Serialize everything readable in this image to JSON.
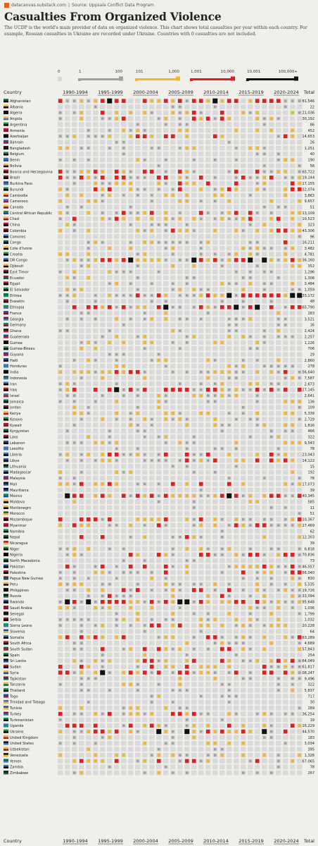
{
  "source": {
    "site": "datacanvas.substack.com",
    "separator": "|",
    "label": "Source: Uppsala Conflict Data Program"
  },
  "title": "Casualties From Organized Violence",
  "description": "The UCDP is the world's main provider of data on organized violence. This chart shows total casualties per year within each country. For example, Russian casualties in Ukraine are recorded under Ukraine. Countries with 0 casualties are not included.",
  "legend": [
    {
      "min": "0",
      "max": "",
      "color": "#d9d9d9"
    },
    {
      "min": "1",
      "max": "100",
      "color": "#a0a0a0"
    },
    {
      "min": "101",
      "max": "1,000",
      "color": "#f2b72a"
    },
    {
      "min": "1,001",
      "max": "10,000",
      "color": "#e81a1a"
    },
    {
      "min": "10,001",
      "max": "100,000+",
      "color": "#111111"
    }
  ],
  "columns": {
    "country": "Country",
    "total": "Total",
    "periods": [
      "1990-1994",
      "1995-1999",
      "2000-2004",
      "2005-2009",
      "2010-2014",
      "2015-2019",
      "2020-2024"
    ]
  },
  "chart_data": {
    "type": "heatmap",
    "years": [
      1990,
      2024
    ],
    "color_scale": [
      "#d9d9d9",
      "#a0a0a0",
      "#f2b72a",
      "#e81a1a",
      "#111111"
    ],
    "rows": [
      {
        "country": "Afghanistan",
        "total": "381,546"
      },
      {
        "country": "Albania",
        "total": "22"
      },
      {
        "country": "Algeria",
        "total": "21,036"
      },
      {
        "country": "Angola",
        "total": "30,192"
      },
      {
        "country": "Argentina",
        "total": "86"
      },
      {
        "country": "Armenia",
        "total": "452"
      },
      {
        "country": "Azerbaijan",
        "total": "14,653"
      },
      {
        "country": "Bahrain",
        "total": "26"
      },
      {
        "country": "Bangladesh",
        "total": "1,251"
      },
      {
        "country": "Belgium",
        "total": "40"
      },
      {
        "country": "Benin",
        "total": "190"
      },
      {
        "country": "Bolivia",
        "total": "58"
      },
      {
        "country": "Bosnia and Herzegovina",
        "total": "65,722"
      },
      {
        "country": "Brazil",
        "total": "19,144"
      },
      {
        "country": "Burkina Faso",
        "total": "17,155"
      },
      {
        "country": "Burundi",
        "total": "32,074"
      },
      {
        "country": "Cambodia",
        "total": "3,863"
      },
      {
        "country": "Cameroon",
        "total": "9,657"
      },
      {
        "country": "Canada",
        "total": "51"
      },
      {
        "country": "Central African Republic",
        "total": "13,109"
      },
      {
        "country": "Chad",
        "total": "10,523"
      },
      {
        "country": "China",
        "total": "323"
      },
      {
        "country": "Colombia",
        "total": "43,306"
      },
      {
        "country": "Comoros",
        "total": "96"
      },
      {
        "country": "Congo",
        "total": "16,211"
      },
      {
        "country": "Cote d'Ivoire",
        "total": "3,482"
      },
      {
        "country": "Croatia",
        "total": "4,781"
      },
      {
        "country": "DR Congo",
        "total": "136,160"
      },
      {
        "country": "Djibouti",
        "total": "352"
      },
      {
        "country": "East Timor",
        "total": "1,296"
      },
      {
        "country": "Ecuador",
        "total": "1,308"
      },
      {
        "country": "Egypt",
        "total": "3,484"
      },
      {
        "country": "El Salvador",
        "total": "1,059"
      },
      {
        "country": "Eritrea",
        "total": "133,172"
      },
      {
        "country": "Eswatini",
        "total": "48"
      },
      {
        "country": "Ethiopia",
        "total": "365,790"
      },
      {
        "country": "France",
        "total": "283"
      },
      {
        "country": "Georgia",
        "total": "3,521"
      },
      {
        "country": "Germany",
        "total": "16"
      },
      {
        "country": "Ghana",
        "total": "2,424"
      },
      {
        "country": "Guatemala",
        "total": "2,257"
      },
      {
        "country": "Guinea",
        "total": "1,226"
      },
      {
        "country": "Guinea-Bissau",
        "total": "706"
      },
      {
        "country": "Guyana",
        "total": "29"
      },
      {
        "country": "Haiti",
        "total": "2,860"
      },
      {
        "country": "Honduras",
        "total": "278"
      },
      {
        "country": "India",
        "total": "56,640"
      },
      {
        "country": "Indonesia",
        "total": "7,587"
      },
      {
        "country": "Iran",
        "total": "2,673"
      },
      {
        "country": "Iraq",
        "total": "127,145"
      },
      {
        "country": "Israel",
        "total": "2,641"
      },
      {
        "country": "Jamaica",
        "total": "136"
      },
      {
        "country": "Jordan",
        "total": "109"
      },
      {
        "country": "Kenya",
        "total": "5,339"
      },
      {
        "country": "Kosovo",
        "total": "2,729"
      },
      {
        "country": "Kuwait",
        "total": "1,816"
      },
      {
        "country": "Kyrgyzstan",
        "total": "466"
      },
      {
        "country": "Laos",
        "total": "322"
      },
      {
        "country": "Lebanon",
        "total": "9,543"
      },
      {
        "country": "Lesotho",
        "total": "78"
      },
      {
        "country": "Liberia",
        "total": "23,043"
      },
      {
        "country": "Libya",
        "total": "14,122"
      },
      {
        "country": "Lithuania",
        "total": "15"
      },
      {
        "country": "Madagascar",
        "total": "192"
      },
      {
        "country": "Malaysia",
        "total": "78"
      },
      {
        "country": "Mali",
        "total": "17,073"
      },
      {
        "country": "Mauritania",
        "total": "39"
      },
      {
        "country": "Mexico",
        "total": "140,345"
      },
      {
        "country": "Moldova",
        "total": "585"
      },
      {
        "country": "Montenegro",
        "total": "11"
      },
      {
        "country": "Morocco",
        "total": "51"
      },
      {
        "country": "Mozambique",
        "total": "10,367"
      },
      {
        "country": "Myanmar",
        "total": "27,469"
      },
      {
        "country": "Namibia",
        "total": "62"
      },
      {
        "country": "Nepal",
        "total": "12,303"
      },
      {
        "country": "Nicaragua",
        "total": "39"
      },
      {
        "country": "Niger",
        "total": "6,818"
      },
      {
        "country": "Nigeria",
        "total": "70,836"
      },
      {
        "country": "North Macedonia",
        "total": "73"
      },
      {
        "country": "Pakistan",
        "total": "46,557"
      },
      {
        "country": "Palestine",
        "total": "56,040"
      },
      {
        "country": "Papua New Guinea",
        "total": "830"
      },
      {
        "country": "Peru",
        "total": "5,535"
      },
      {
        "country": "Philippines",
        "total": "19,726"
      },
      {
        "country": "Russia",
        "total": "33,094"
      },
      {
        "country": "Rwanda",
        "total": "795,648"
      },
      {
        "country": "Saudi Arabia",
        "total": "1,036"
      },
      {
        "country": "Senegal",
        "total": "1,799"
      },
      {
        "country": "Serbia",
        "total": "1,032"
      },
      {
        "country": "Sierra Leone",
        "total": "20,228"
      },
      {
        "country": "Slovenia",
        "total": "64"
      },
      {
        "country": "Somalia",
        "total": "63,289"
      },
      {
        "country": "South Africa",
        "total": "4,689"
      },
      {
        "country": "South Sudan",
        "total": "57,843"
      },
      {
        "country": "Spain",
        "total": "254"
      },
      {
        "country": "Sri Lanka",
        "total": "64,049"
      },
      {
        "country": "Sudan",
        "total": "61,817"
      },
      {
        "country": "Syria",
        "total": "408,247"
      },
      {
        "country": "Tajikistan",
        "total": "9,496"
      },
      {
        "country": "Tanzania",
        "total": "322"
      },
      {
        "country": "Thailand",
        "total": "5,837"
      },
      {
        "country": "Togo",
        "total": "717"
      },
      {
        "country": "Trinidad and Tobago",
        "total": "30"
      },
      {
        "country": "Tunisia",
        "total": "289"
      },
      {
        "country": "Turkey",
        "total": "36,254"
      },
      {
        "country": "Turkmenistan",
        "total": "19"
      },
      {
        "country": "Uganda",
        "total": "16,229"
      },
      {
        "country": "Ukraine",
        "total": "244,570"
      },
      {
        "country": "United Kingdom",
        "total": "183"
      },
      {
        "country": "United States",
        "total": "3,034"
      },
      {
        "country": "Uzbekistan",
        "total": "395"
      },
      {
        "country": "Venezuela",
        "total": "1,328"
      },
      {
        "country": "Yemen",
        "total": "67,065"
      },
      {
        "country": "Zambia",
        "total": "78"
      },
      {
        "country": "Zimbabwe",
        "total": "267"
      }
    ]
  }
}
